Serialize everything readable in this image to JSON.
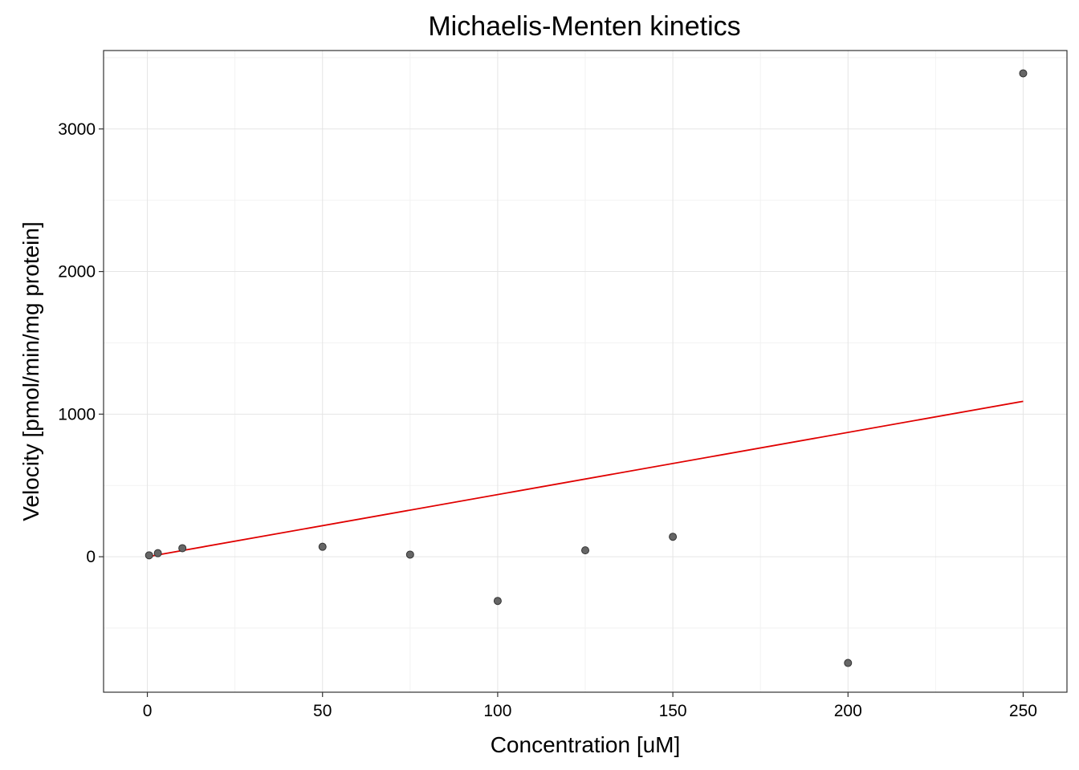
{
  "chart_data": {
    "type": "scatter",
    "title": "Michaelis-Menten kinetics",
    "xlabel": "Concentration [uM]",
    "ylabel": "Velocity [pmol/min/mg protein]",
    "xlim": [
      -12.5,
      262.5
    ],
    "ylim": [
      -950,
      3550
    ],
    "x_ticks": [
      0,
      50,
      100,
      150,
      200,
      250
    ],
    "x_tick_labels": [
      "0",
      "50",
      "100",
      "150",
      "200",
      "250"
    ],
    "y_ticks": [
      0,
      1000,
      2000,
      3000
    ],
    "y_tick_labels": [
      "0",
      "1000",
      "2000",
      "3000"
    ],
    "grid": true,
    "legend": "none",
    "points": [
      {
        "x": 0.5,
        "y": 10
      },
      {
        "x": 3,
        "y": 25
      },
      {
        "x": 10,
        "y": 60
      },
      {
        "x": 50,
        "y": 70
      },
      {
        "x": 75,
        "y": 15
      },
      {
        "x": 100,
        "y": -310
      },
      {
        "x": 125,
        "y": 45
      },
      {
        "x": 150,
        "y": 140
      },
      {
        "x": 200,
        "y": -745
      },
      {
        "x": 250,
        "y": 3390
      }
    ],
    "fit_line": {
      "x": [
        0,
        250
      ],
      "y": [
        0,
        1090
      ]
    },
    "colors": {
      "points_fill": "#666666",
      "points_stroke": "#333333",
      "fit_line": "#e00000",
      "panel_border": "#333333",
      "grid_major": "#e5e5e5",
      "grid_minor": "#f2f2f2"
    }
  }
}
